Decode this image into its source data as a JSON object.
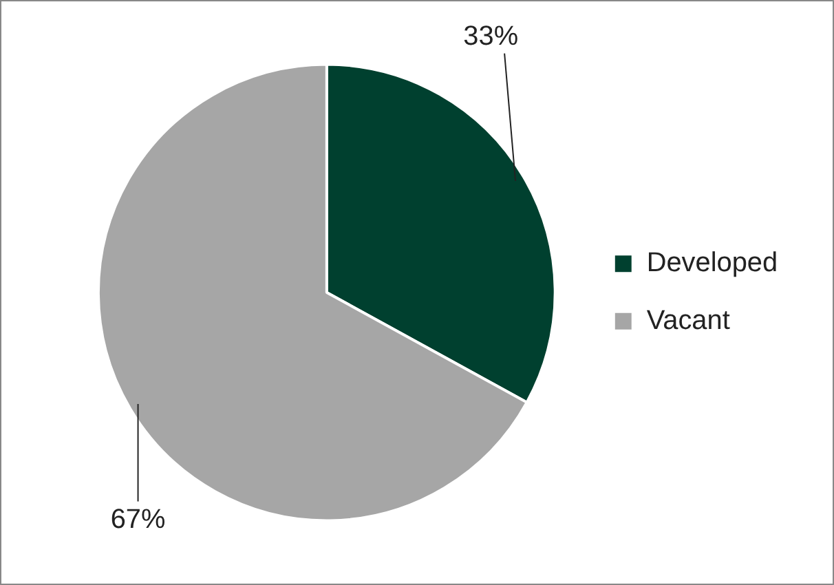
{
  "chart_data": {
    "type": "pie",
    "categories": [
      "Developed",
      "Vacant"
    ],
    "values": [
      33,
      67
    ],
    "colors": [
      "#00402f",
      "#a6a6a6"
    ],
    "value_labels": [
      "33%",
      "67%"
    ],
    "legend": "right"
  }
}
